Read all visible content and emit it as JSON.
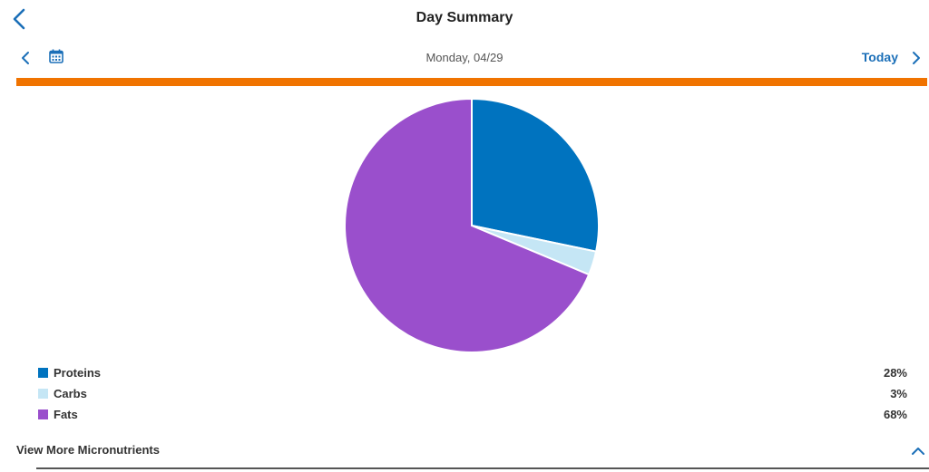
{
  "header": {
    "title": "Day Summary",
    "back_icon": "chevron-left-icon"
  },
  "datebar": {
    "date": "Monday, 04/29",
    "today_label": "Today",
    "prev_icon": "chevron-left-icon",
    "calendar_icon": "calendar-icon",
    "next_icon": "chevron-right-icon"
  },
  "colors": {
    "accent": "#1b6fb8",
    "orange": "#f07300",
    "proteins": "#0073bf",
    "carbs": "#c5e6f5",
    "fats": "#9a4fcc"
  },
  "chart_data": {
    "type": "pie",
    "slices": [
      {
        "label": "Proteins",
        "value": 28,
        "display": "28%",
        "color": "#0073bf"
      },
      {
        "label": "Carbs",
        "value": 3,
        "display": "3%",
        "color": "#c5e6f5"
      },
      {
        "label": "Fats",
        "value": 68,
        "display": "68%",
        "color": "#9a4fcc"
      }
    ]
  },
  "footer": {
    "more_label": "View More Micronutrients",
    "expand_icon": "chevron-up-icon"
  }
}
